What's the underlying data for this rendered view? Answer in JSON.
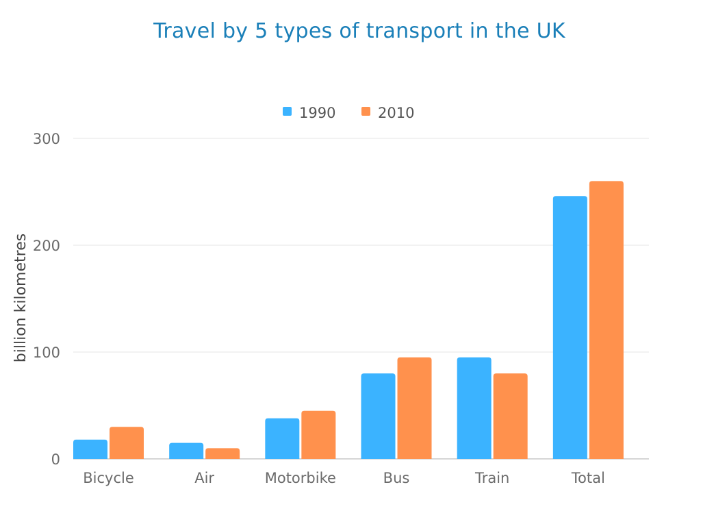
{
  "chart_data": {
    "type": "bar",
    "title": "Travel by 5 types of transport in the UK",
    "xlabel": "",
    "ylabel": "billion kilometres",
    "categories": [
      "Bicycle",
      "Air",
      "Motorbike",
      "Bus",
      "Train",
      "Total"
    ],
    "series": [
      {
        "name": "1990",
        "color": "#3bb3ff",
        "values": [
          18,
          15,
          38,
          80,
          95,
          246
        ]
      },
      {
        "name": "2010",
        "color": "#ff914d",
        "values": [
          30,
          10,
          45,
          95,
          80,
          260
        ]
      }
    ],
    "ylim": [
      0,
      300
    ],
    "yticks": [
      0,
      100,
      200,
      300
    ],
    "grid": true,
    "legend": "top-center"
  }
}
